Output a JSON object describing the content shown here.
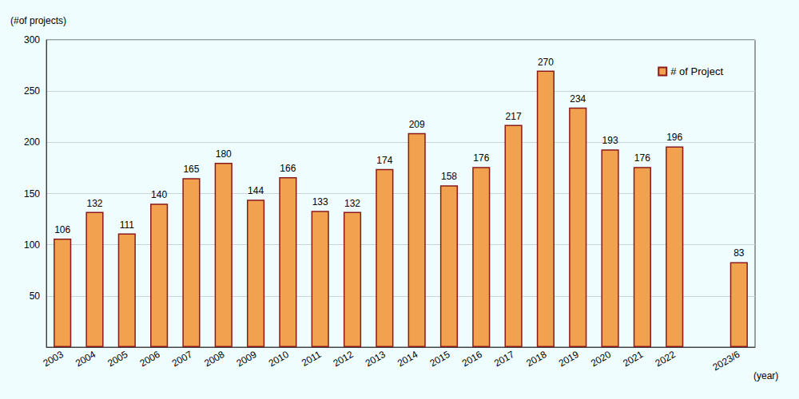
{
  "chart_data": {
    "type": "bar",
    "categories": [
      "2003",
      "2004",
      "2005",
      "2006",
      "2007",
      "2008",
      "2009",
      "2010",
      "2011",
      "2012",
      "2013",
      "2014",
      "2015",
      "2016",
      "2017",
      "2018",
      "2019",
      "2020",
      "2021",
      "2022",
      null,
      "2023/6"
    ],
    "series": [
      {
        "name": "# of Project",
        "color": "#f2a24e",
        "values": [
          106,
          132,
          111,
          140,
          165,
          180,
          144,
          166,
          133,
          132,
          174,
          209,
          158,
          176,
          217,
          270,
          234,
          193,
          176,
          196,
          null,
          83
        ]
      }
    ],
    "x_label": "(year)",
    "y_label": "(#of projects)",
    "ylim": [
      0,
      300
    ],
    "yticks": [
      50,
      100,
      150,
      200,
      250,
      300
    ],
    "grid": true,
    "legend": "upper right",
    "data_labels": true
  }
}
